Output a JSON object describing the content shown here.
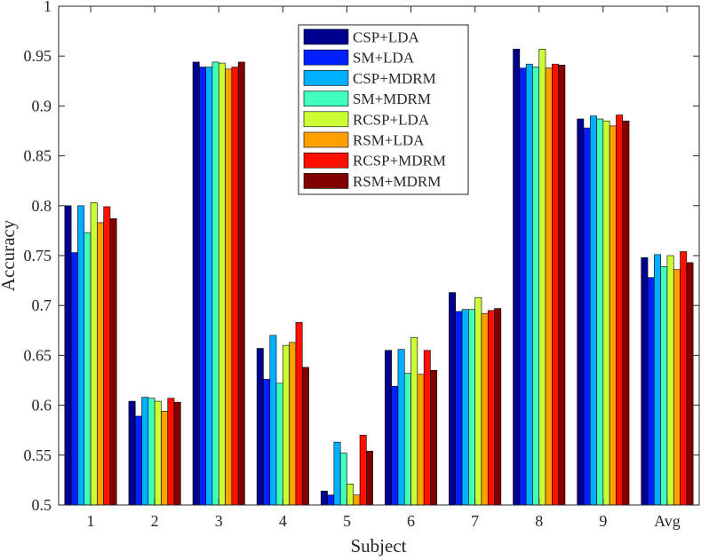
{
  "chart_data": {
    "type": "bar",
    "title": "",
    "xlabel": "Subject",
    "ylabel": "Accuracy",
    "ylim": [
      0.5,
      1
    ],
    "yticks": [
      0.5,
      0.55,
      0.6,
      0.65,
      0.7,
      0.75,
      0.8,
      0.85,
      0.9,
      0.95,
      1
    ],
    "ytick_labels": [
      "0.5",
      "0.55",
      "0.6",
      "0.65",
      "0.7",
      "0.75",
      "0.8",
      "0.85",
      "0.9",
      "0.95",
      "1"
    ],
    "categories": [
      "1",
      "2",
      "3",
      "4",
      "5",
      "6",
      "7",
      "8",
      "9",
      "Avg"
    ],
    "legend_position": "top-center",
    "grid": false,
    "series": [
      {
        "name": "CSP+LDA",
        "color": "#00008f",
        "values": [
          0.8,
          0.604,
          0.944,
          0.657,
          0.514,
          0.655,
          0.713,
          0.957,
          0.887,
          0.748
        ]
      },
      {
        "name": "SM+LDA",
        "color": "#0020ff",
        "values": [
          0.753,
          0.589,
          0.939,
          0.626,
          0.51,
          0.619,
          0.694,
          0.938,
          0.878,
          0.728
        ]
      },
      {
        "name": "CSP+MDRM",
        "color": "#00b0ff",
        "values": [
          0.8,
          0.608,
          0.939,
          0.67,
          0.563,
          0.656,
          0.696,
          0.942,
          0.89,
          0.751
        ]
      },
      {
        "name": "SM+MDRM",
        "color": "#40ffbf",
        "values": [
          0.773,
          0.607,
          0.944,
          0.622,
          0.552,
          0.632,
          0.696,
          0.939,
          0.887,
          0.739
        ]
      },
      {
        "name": "RCSP+LDA",
        "color": "#ccff33",
        "values": [
          0.803,
          0.604,
          0.943,
          0.66,
          0.521,
          0.668,
          0.708,
          0.957,
          0.885,
          0.75
        ]
      },
      {
        "name": "RSM+LDA",
        "color": "#ff9f00",
        "values": [
          0.783,
          0.594,
          0.937,
          0.663,
          0.51,
          0.631,
          0.692,
          0.938,
          0.88,
          0.736
        ]
      },
      {
        "name": "RCSP+MDRM",
        "color": "#ff1000",
        "values": [
          0.799,
          0.607,
          0.939,
          0.683,
          0.57,
          0.655,
          0.695,
          0.942,
          0.891,
          0.754
        ]
      },
      {
        "name": "RSM+MDRM",
        "color": "#800000",
        "values": [
          0.787,
          0.603,
          0.944,
          0.638,
          0.554,
          0.635,
          0.697,
          0.941,
          0.885,
          0.743
        ]
      }
    ]
  }
}
